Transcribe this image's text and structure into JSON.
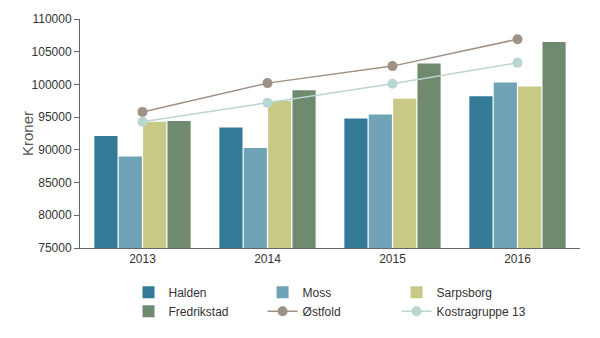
{
  "chart_data": {
    "type": "bar",
    "y_label": "Kroner",
    "categories": [
      "2013",
      "2014",
      "2015",
      "2016"
    ],
    "ylim": [
      75000,
      110000
    ],
    "yticks": [
      75000,
      80000,
      85000,
      90000,
      95000,
      100000,
      105000,
      110000
    ],
    "grid": false,
    "legend": "bottom",
    "series": [
      {
        "name": "Halden",
        "color": "#337a96",
        "values": [
          92100,
          93400,
          94800,
          98200
        ]
      },
      {
        "name": "Moss",
        "color": "#6fa3b5",
        "values": [
          89000,
          90300,
          95400,
          100300
        ]
      },
      {
        "name": "Sarpsborg",
        "color": "#c8c987",
        "values": [
          94300,
          97500,
          97800,
          99700
        ]
      },
      {
        "name": "Fredrikstad",
        "color": "#6f8a6e",
        "values": [
          94400,
          99100,
          103200,
          106500
        ]
      },
      {
        "name": "Østfold",
        "color": "#9e9185",
        "type": "line",
        "marker": "circle",
        "values": [
          95800,
          100200,
          102800,
          106900
        ]
      },
      {
        "name": "Kostragruppe 13",
        "color": "#b9d6d2",
        "type": "line",
        "marker": "circle",
        "values": [
          94300,
          97200,
          100100,
          103300
        ]
      }
    ]
  }
}
